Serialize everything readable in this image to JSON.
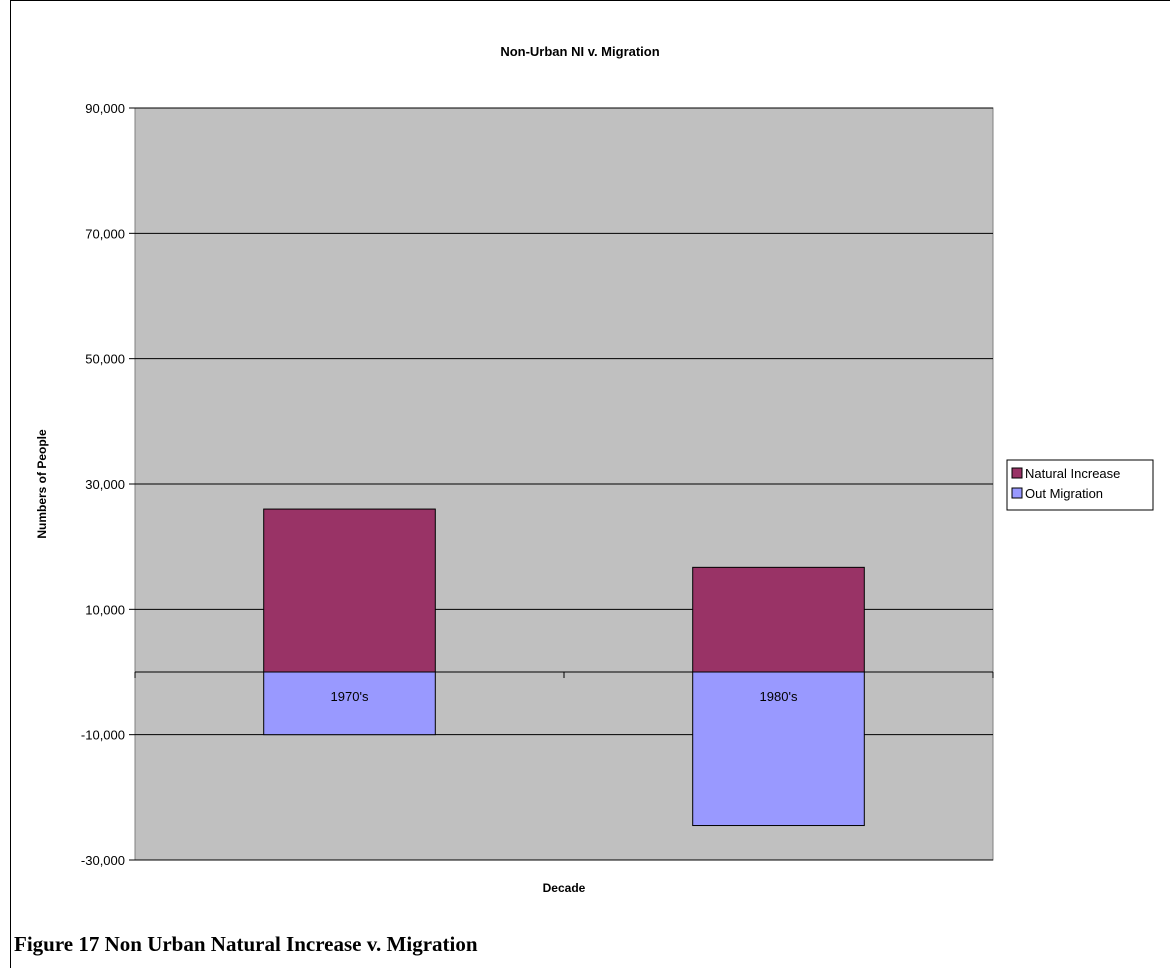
{
  "caption": "Figure 17 Non Urban Natural Increase v. Migration",
  "chart_data": {
    "type": "bar",
    "stacked": true,
    "title": "Non-Urban NI v. Migration",
    "xlabel": "Decade",
    "ylabel": "Numbers of People",
    "categories": [
      "1970's",
      "1980's"
    ],
    "series": [
      {
        "name": "Natural Increase",
        "values": [
          26000,
          16700
        ],
        "color": "#993366"
      },
      {
        "name": "Out Migration",
        "values": [
          -10000,
          -24500
        ],
        "color": "#9999ff"
      }
    ],
    "ylim": [
      -30000,
      90000
    ],
    "yticks": [
      -30000,
      -10000,
      10000,
      30000,
      50000,
      70000,
      90000
    ],
    "ytick_labels": [
      "-30,000",
      "-10,000",
      "10,000",
      "30,000",
      "50,000",
      "70,000",
      "90,000"
    ],
    "grid": true,
    "plot_background": "#c0c0c0",
    "legend_position": "right"
  }
}
